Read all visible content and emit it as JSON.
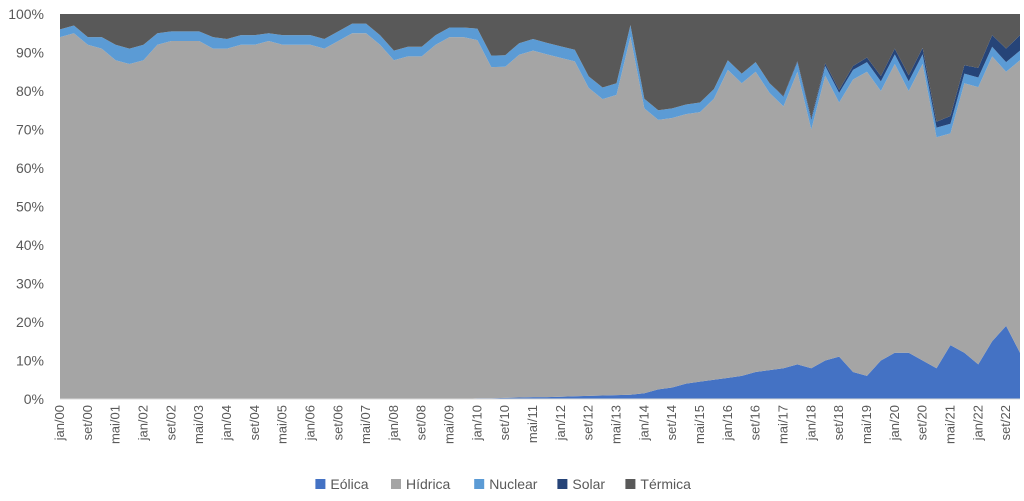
{
  "chart_data": {
    "type": "area",
    "stacked": true,
    "percent": true,
    "title": "",
    "xlabel": "",
    "ylabel": "",
    "ylim": [
      0,
      100
    ],
    "yticks": [
      "0%",
      "10%",
      "20%",
      "30%",
      "40%",
      "50%",
      "60%",
      "70%",
      "80%",
      "90%",
      "100%"
    ],
    "grid": false,
    "legend_position": "bottom",
    "x_labels": [
      "jan/00",
      "set/00",
      "mai/01",
      "jan/02",
      "set/02",
      "mai/03",
      "jan/04",
      "set/04",
      "mai/05",
      "jan/06",
      "set/06",
      "mai/07",
      "jan/08",
      "set/08",
      "mai/09",
      "jan/10",
      "set/10",
      "mai/11",
      "jan/12",
      "set/12",
      "mai/13",
      "jan/14",
      "set/14",
      "mai/15",
      "jan/16",
      "set/16",
      "mai/17",
      "jan/18",
      "set/18",
      "mai/19",
      "jan/20",
      "set/20",
      "mai/21",
      "jan/22",
      "set/22"
    ],
    "x_points": [
      "jan/00",
      "mai/00",
      "set/00",
      "jan/01",
      "mai/01",
      "set/01",
      "jan/02",
      "mai/02",
      "set/02",
      "jan/03",
      "mai/03",
      "set/03",
      "jan/04",
      "mai/04",
      "set/04",
      "jan/05",
      "mai/05",
      "set/05",
      "jan/06",
      "mai/06",
      "set/06",
      "jan/07",
      "mai/07",
      "set/07",
      "jan/08",
      "mai/08",
      "set/08",
      "jan/09",
      "mai/09",
      "set/09",
      "jan/10",
      "mai/10",
      "set/10",
      "jan/11",
      "mai/11",
      "set/11",
      "jan/12",
      "mai/12",
      "set/12",
      "jan/13",
      "mai/13",
      "set/13",
      "jan/14",
      "mai/14",
      "set/14",
      "jan/15",
      "mai/15",
      "set/15",
      "jan/16",
      "mai/16",
      "set/16",
      "jan/17",
      "mai/17",
      "set/17",
      "jan/18",
      "mai/18",
      "set/18",
      "jan/19",
      "mai/19",
      "set/19",
      "jan/20",
      "mai/20",
      "set/20",
      "jan/21",
      "mai/21",
      "set/21",
      "jan/22",
      "mai/22",
      "set/22",
      "jan/23"
    ],
    "series": [
      {
        "name": "Eólica",
        "color": "#4472c4",
        "values": [
          0,
          0,
          0,
          0,
          0,
          0,
          0,
          0,
          0,
          0,
          0,
          0,
          0,
          0,
          0,
          0,
          0,
          0,
          0,
          0,
          0,
          0,
          0,
          0,
          0,
          0,
          0,
          0,
          0,
          0,
          0.2,
          0.2,
          0.3,
          0.4,
          0.5,
          0.5,
          0.6,
          0.7,
          0.8,
          0.9,
          1,
          1.1,
          1.5,
          2.5,
          3,
          4,
          4.5,
          5,
          5.5,
          6,
          7,
          7.5,
          8,
          9,
          8,
          10,
          11,
          7,
          6,
          10,
          12,
          12,
          10,
          8,
          14,
          12,
          9,
          15,
          19,
          12
        ]
      },
      {
        "name": "Hídrica",
        "color": "#a5a5a5",
        "values": [
          94,
          95,
          92,
          91,
          88,
          87,
          88,
          92,
          93,
          93,
          93,
          91,
          91,
          92,
          92,
          93,
          92,
          92,
          92,
          91,
          93,
          95,
          95,
          92,
          88,
          89,
          89,
          92,
          94,
          94,
          93,
          86,
          86,
          89,
          90,
          89,
          88,
          87,
          80,
          77,
          78,
          93,
          74,
          70,
          70,
          70,
          70,
          73,
          80,
          76,
          78,
          72,
          68,
          76,
          62,
          74,
          66,
          76,
          79,
          70,
          75,
          68,
          77,
          60,
          55,
          70,
          72,
          74,
          66,
          76
        ]
      },
      {
        "name": "Nuclear",
        "color": "#5b9bd5",
        "values": [
          2,
          2,
          2,
          3,
          4,
          4,
          4,
          3,
          2.5,
          2.5,
          2.5,
          3,
          2.5,
          2.5,
          2.5,
          2,
          2.5,
          2.5,
          2.5,
          2.5,
          2.5,
          2.5,
          2.5,
          2.5,
          2.5,
          2.5,
          2.5,
          2.5,
          2.5,
          2.5,
          3,
          3,
          3,
          3,
          3,
          3,
          3,
          3,
          3,
          3,
          3,
          3,
          2.5,
          2.5,
          2.5,
          2.5,
          2.5,
          2.5,
          2.5,
          2.5,
          2.5,
          2.5,
          2.5,
          2.5,
          2.5,
          2.5,
          2.5,
          2.5,
          2.5,
          2.5,
          2.5,
          2.5,
          2.5,
          2.5,
          2.5,
          2.5,
          2.5,
          2.5,
          2.5,
          2.5
        ]
      },
      {
        "name": "Solar",
        "color": "#264478",
        "values": [
          0,
          0,
          0,
          0,
          0,
          0,
          0,
          0,
          0,
          0,
          0,
          0,
          0,
          0,
          0,
          0,
          0,
          0,
          0,
          0,
          0,
          0,
          0,
          0,
          0,
          0,
          0,
          0,
          0,
          0,
          0,
          0,
          0,
          0,
          0,
          0,
          0,
          0,
          0,
          0,
          0,
          0,
          0,
          0,
          0,
          0,
          0,
          0,
          0,
          0,
          0,
          0,
          0.2,
          0.3,
          0.5,
          0.7,
          0.8,
          1,
          1.2,
          1.4,
          1.5,
          1.6,
          1.7,
          1.5,
          2,
          2.2,
          2.5,
          3,
          3.5,
          4
        ]
      },
      {
        "name": "Térmica",
        "color": "#595959",
        "values": [
          4,
          3,
          6,
          6,
          8,
          9,
          8,
          5,
          4.5,
          4.5,
          4.5,
          6,
          6.5,
          5.5,
          5.5,
          5,
          5.5,
          5.5,
          5.5,
          6.5,
          4.5,
          2.5,
          2.5,
          5.5,
          9.5,
          8.5,
          8.5,
          5.5,
          3.5,
          3.5,
          3.8,
          10.8,
          10.7,
          7.6,
          6.5,
          7.5,
          8.4,
          9.3,
          16.2,
          19.1,
          18,
          2.9,
          22,
          25,
          24.5,
          23.5,
          23,
          19.5,
          12,
          15.5,
          12.5,
          18,
          21.3,
          12.2,
          27,
          12.8,
          19.7,
          13.5,
          11.3,
          16.1,
          9,
          15.9,
          8.8,
          28,
          26.5,
          13.3,
          14,
          5.5,
          9,
          5.5
        ]
      }
    ]
  }
}
